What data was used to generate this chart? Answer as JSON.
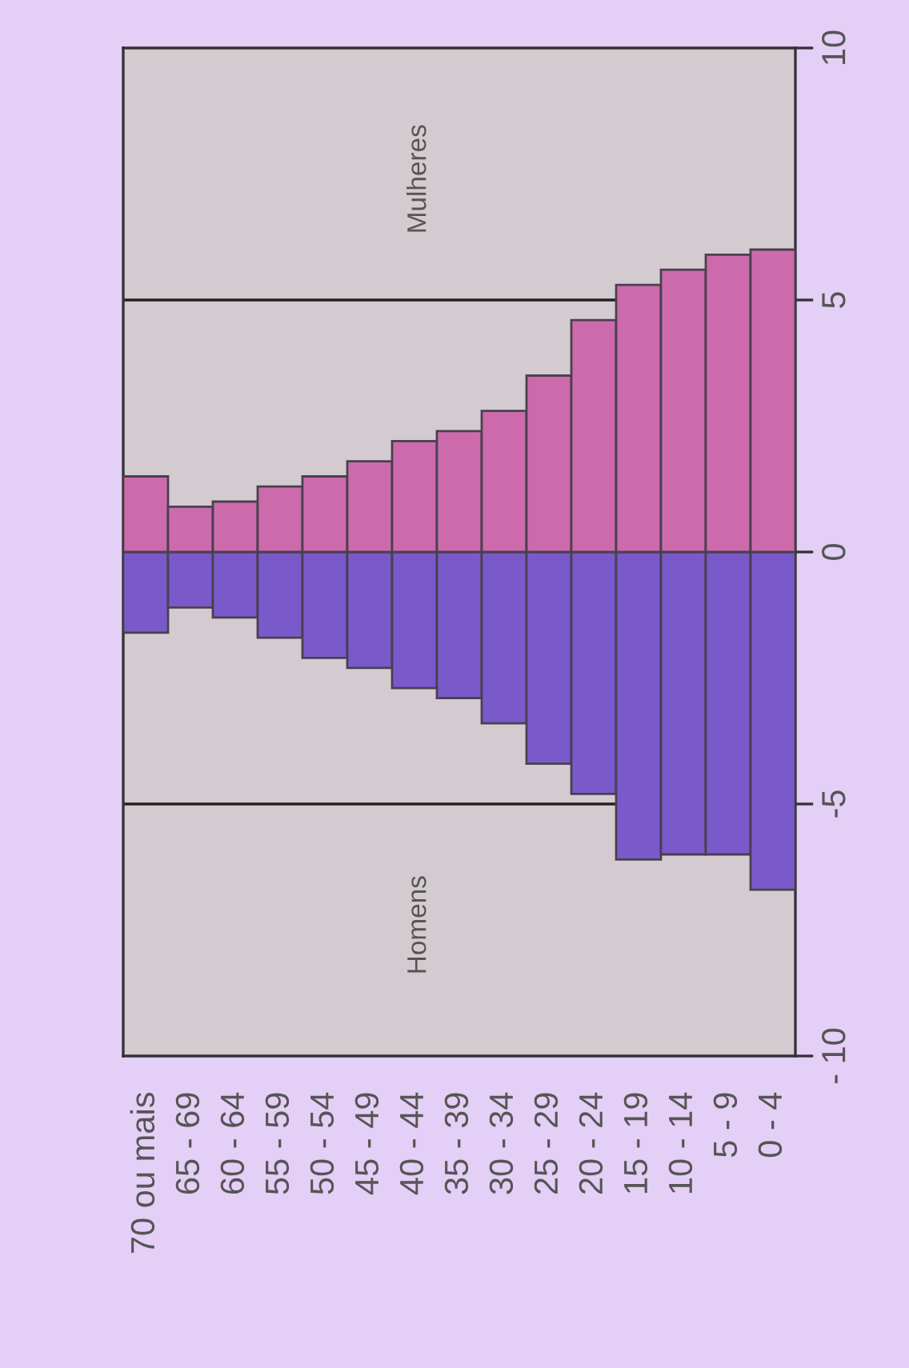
{
  "chart_data": {
    "type": "bar",
    "categories": [
      "70 ou mais",
      "65 - 69",
      "60 - 64",
      "55 - 59",
      "50 - 54",
      "45 - 49",
      "40 - 44",
      "35 - 39",
      "30 - 34",
      "25 - 29",
      "20 - 24",
      "15 - 19",
      "10 - 14",
      "5 - 9",
      "0 - 4"
    ],
    "series": [
      {
        "color": "#7a5acb",
        "values": [
          -1.6,
          -1.1,
          -1.3,
          -1.7,
          -2.1,
          -2.3,
          -2.7,
          -2.9,
          -3.4,
          -4.2,
          -4.8,
          -6.1,
          -6.0,
          -6.0,
          -6.7
        ]
      },
      {
        "color": "#cc6aac",
        "values": [
          1.5,
          0.9,
          1.0,
          1.3,
          1.5,
          1.8,
          2.2,
          2.4,
          2.8,
          3.5,
          4.6,
          5.3,
          5.6,
          5.9,
          6.0
        ]
      }
    ],
    "ylim": [
      -10,
      10
    ],
    "yticks": [
      {
        "value": -10,
        "label": "- 10"
      },
      -5,
      0,
      5,
      10
    ],
    "ref_lines": [
      {
        "axis": "y",
        "value": -5,
        "color": "#222222"
      },
      {
        "axis": "y",
        "value": 5,
        "color": "#222222"
      }
    ],
    "stacked": true,
    "annotations": [
      "Homens",
      "Mulheres"
    ],
    "grid": false,
    "legend": false
  }
}
